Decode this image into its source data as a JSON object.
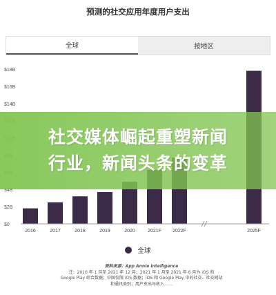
{
  "header": {
    "title": "预测的社交应用年度用户支出"
  },
  "tabs": [
    {
      "label": "全球",
      "active": true
    },
    {
      "label": "按地区",
      "active": false
    }
  ],
  "banner": {
    "line1": "社交媒体崛起重塑新闻",
    "line2": "行业，新闻头条的变革"
  },
  "legend": {
    "label": "全球"
  },
  "source": {
    "head": "资料来源：App Annie Intelligence",
    "line1": "注：2010 年 1 月至 2021 年 12 月；2021 年 1 月至 2021 年 6 月为 iOS 和",
    "line2": "Google Play 综合数据；中国仅限 iOS 数据；iOS 和 Google Play 中的社交、社交网站",
    "line3": "和通讯类别；用户支出与收入……"
  },
  "colors": {
    "bar": "#3b2a48",
    "axis": "#999999",
    "grid": "#e6e6e6"
  },
  "chart_data": {
    "type": "bar",
    "title": "预测的社交应用年度用户支出",
    "xlabel": "",
    "ylabel": "",
    "categories": [
      "2016",
      "2017",
      "2018",
      "2019",
      "2020",
      "2021F",
      "2022F",
      "2025F"
    ],
    "series": [
      {
        "name": "全球",
        "values": [
          1.8,
          2.5,
          3.2,
          3.7,
          4.9,
          6.3,
          7.7,
          17.8
        ]
      }
    ],
    "ylim": [
      0,
      18
    ],
    "yticks": [
      "$0",
      "$2B",
      "$4B",
      "$6B",
      "$8B",
      "$10B",
      "$12B",
      "$14B",
      "$16B",
      "$18B"
    ],
    "axis_break": "between 2022F and 2025F",
    "grid": false,
    "legend_position": "bottom"
  }
}
